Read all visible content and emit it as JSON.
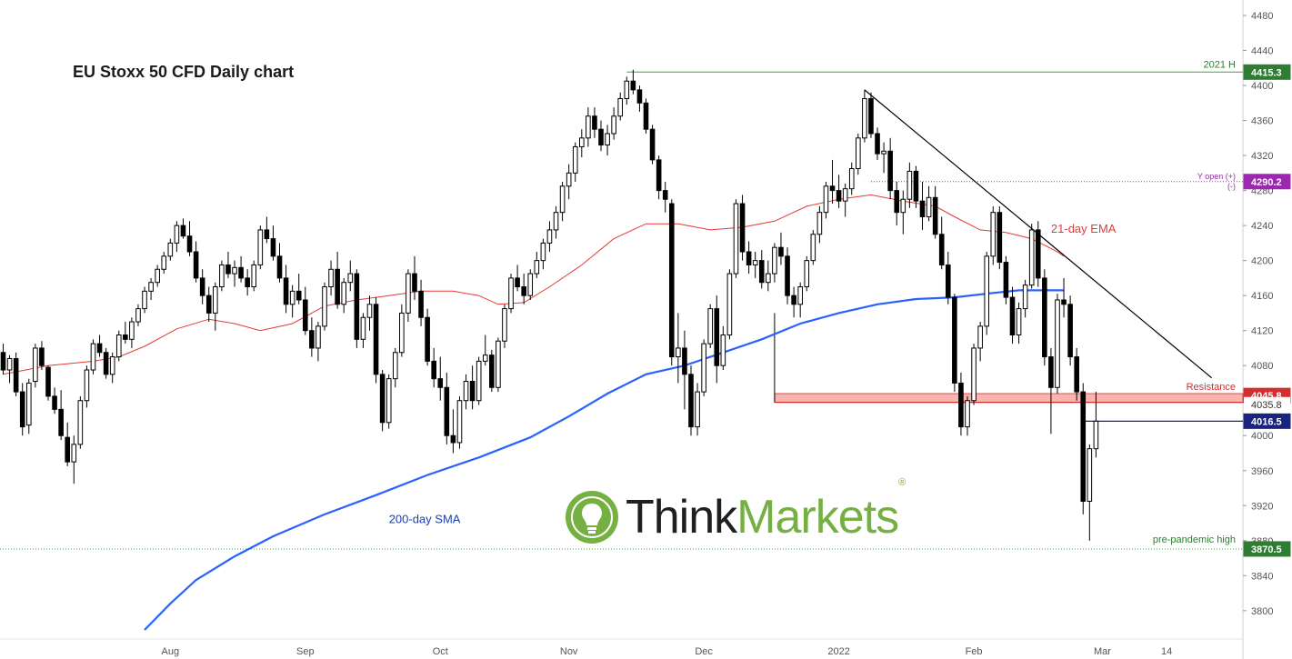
{
  "title": "EU Stoxx 50 CFD Daily chart",
  "colors": {
    "bull": "#ffffff",
    "bear": "#000000",
    "ema": "#e53935",
    "sma": "#2962ff",
    "trendline": "#000000",
    "resistance_zone": "#f8b4ad",
    "resistance_label": "#d32f2f",
    "green": "#2e7d32",
    "purple": "#9c27b0",
    "blue_price": "#1a237e"
  },
  "logo": {
    "think": "Think",
    "markets": "Markets",
    "reg": "®"
  },
  "chart_data": {
    "type": "candlestick",
    "title": "EU Stoxx 50 CFD Daily chart",
    "ylim": [
      3780,
      4480
    ],
    "y_ticks": [
      3800,
      3840,
      3880,
      3920,
      3960,
      4000,
      4040,
      4080,
      4120,
      4160,
      4200,
      4240,
      4280,
      4320,
      4360,
      4400,
      4440,
      4480
    ],
    "x_ticks": [
      {
        "label": "Aug",
        "bar": 26
      },
      {
        "label": "Sep",
        "bar": 47
      },
      {
        "label": "Oct",
        "bar": 68
      },
      {
        "label": "Nov",
        "bar": 88
      },
      {
        "label": "Dec",
        "bar": 109
      },
      {
        "label": "2022",
        "bar": 130
      },
      {
        "label": "Feb",
        "bar": 151
      },
      {
        "label": "Mar",
        "bar": 171
      },
      {
        "label": "14",
        "bar": 181
      }
    ],
    "price_labels": [
      {
        "label": "4415.3",
        "value": 4415.3,
        "color": "#2e7d32",
        "text_color": "#ffffff"
      },
      {
        "label": "4290.2",
        "value": 4290.2,
        "color": "#9c27b0",
        "text_color": "#ffffff"
      },
      {
        "label": "4045.8",
        "value": 4045.8,
        "color": "#d32f2f",
        "text_color": "#ffffff"
      },
      {
        "label": "4035.8",
        "value": 4035.8,
        "color": "#ffffff",
        "text_color": "#333333"
      },
      {
        "label": "4016.5",
        "value": 4016.5,
        "color": "#1a237e",
        "text_color": "#ffffff"
      },
      {
        "label": "3870.5",
        "value": 3870.5,
        "color": "#2e7d32",
        "text_color": "#ffffff"
      }
    ],
    "levels": {
      "high_2021": {
        "label": "2021 H",
        "value": 4415.3,
        "from_bar": 97
      },
      "y_open": {
        "label": "Y open (+)",
        "label2": "(-)",
        "value": 4290.2,
        "from_bar": 135
      },
      "resistance": {
        "label": "Resistance",
        "top": 4048,
        "bottom": 4038,
        "from_bar": 120
      },
      "last_price": {
        "value": 4016.5,
        "from_bar": 168
      },
      "pre_pandemic_high": {
        "label": "pre-pandemic high",
        "value": 3870.5
      }
    },
    "trendline": {
      "from": {
        "bar": 134,
        "value": 4395
      },
      "to": {
        "bar": 188,
        "value": 4066
      }
    },
    "annotations": [
      {
        "label": "21-day EMA",
        "series": "ema",
        "at_bar": 163
      },
      {
        "label": "200-day SMA",
        "series": "sma",
        "at_bar": 60
      }
    ],
    "series": [
      {
        "name": "21-day EMA",
        "key": "ema",
        "points": [
          [
            0,
            4070
          ],
          [
            7,
            4080
          ],
          [
            14,
            4085
          ],
          [
            18,
            4090
          ],
          [
            22,
            4102
          ],
          [
            27,
            4122
          ],
          [
            32,
            4133
          ],
          [
            36,
            4128
          ],
          [
            40,
            4120
          ],
          [
            45,
            4128
          ],
          [
            50,
            4148
          ],
          [
            55,
            4155
          ],
          [
            60,
            4160
          ],
          [
            65,
            4165
          ],
          [
            70,
            4165
          ],
          [
            74,
            4160
          ],
          [
            77,
            4150
          ],
          [
            81,
            4152
          ],
          [
            85,
            4170
          ],
          [
            90,
            4195
          ],
          [
            95,
            4225
          ],
          [
            100,
            4242
          ],
          [
            105,
            4242
          ],
          [
            110,
            4235
          ],
          [
            115,
            4238
          ],
          [
            120,
            4245
          ],
          [
            125,
            4262
          ],
          [
            130,
            4270
          ],
          [
            135,
            4275
          ],
          [
            140,
            4268
          ],
          [
            145,
            4262
          ],
          [
            148,
            4250
          ],
          [
            152,
            4235
          ],
          [
            156,
            4232
          ],
          [
            160,
            4225
          ],
          [
            164,
            4210
          ],
          [
            165,
            4205
          ]
        ]
      },
      {
        "name": "200-day SMA",
        "key": "sma",
        "points": [
          [
            22,
            3778
          ],
          [
            26,
            3808
          ],
          [
            30,
            3835
          ],
          [
            36,
            3862
          ],
          [
            42,
            3885
          ],
          [
            50,
            3910
          ],
          [
            58,
            3932
          ],
          [
            66,
            3955
          ],
          [
            74,
            3975
          ],
          [
            82,
            3998
          ],
          [
            88,
            4022
          ],
          [
            94,
            4048
          ],
          [
            100,
            4070
          ],
          [
            106,
            4080
          ],
          [
            112,
            4095
          ],
          [
            118,
            4110
          ],
          [
            124,
            4128
          ],
          [
            130,
            4140
          ],
          [
            136,
            4150
          ],
          [
            142,
            4156
          ],
          [
            148,
            4158
          ],
          [
            154,
            4163
          ],
          [
            158,
            4166
          ],
          [
            165,
            4166
          ]
        ]
      }
    ],
    "candles": [
      [
        4095,
        4105,
        4070,
        4075
      ],
      [
        4075,
        4092,
        4060,
        4088
      ],
      [
        4088,
        4095,
        4045,
        4050
      ],
      [
        4050,
        4060,
        4000,
        4010
      ],
      [
        4012,
        4065,
        4002,
        4060
      ],
      [
        4062,
        4105,
        4055,
        4100
      ],
      [
        4100,
        4108,
        4075,
        4080
      ],
      [
        4078,
        4080,
        4040,
        4045
      ],
      [
        4045,
        4055,
        4025,
        4030
      ],
      [
        4030,
        4052,
        3995,
        4000
      ],
      [
        3998,
        4015,
        3965,
        3970
      ],
      [
        3970,
        4000,
        3945,
        3990
      ],
      [
        3990,
        4045,
        3985,
        4040
      ],
      [
        4040,
        4080,
        4032,
        4075
      ],
      [
        4075,
        4110,
        4070,
        4105
      ],
      [
        4105,
        4115,
        4090,
        4095
      ],
      [
        4095,
        4100,
        4065,
        4070
      ],
      [
        4070,
        4095,
        4060,
        4090
      ],
      [
        4090,
        4120,
        4085,
        4115
      ],
      [
        4115,
        4130,
        4105,
        4110
      ],
      [
        4110,
        4135,
        4100,
        4130
      ],
      [
        4130,
        4150,
        4125,
        4145
      ],
      [
        4145,
        4170,
        4140,
        4165
      ],
      [
        4165,
        4180,
        4155,
        4175
      ],
      [
        4175,
        4195,
        4170,
        4190
      ],
      [
        4190,
        4210,
        4185,
        4205
      ],
      [
        4205,
        4225,
        4200,
        4220
      ],
      [
        4220,
        4245,
        4210,
        4240
      ],
      [
        4240,
        4248,
        4225,
        4228
      ],
      [
        4228,
        4245,
        4205,
        4210
      ],
      [
        4210,
        4222,
        4175,
        4180
      ],
      [
        4180,
        4190,
        4150,
        4160
      ],
      [
        4160,
        4170,
        4130,
        4140
      ],
      [
        4140,
        4175,
        4120,
        4170
      ],
      [
        4170,
        4200,
        4165,
        4195
      ],
      [
        4195,
        4210,
        4180,
        4185
      ],
      [
        4185,
        4200,
        4170,
        4192
      ],
      [
        4192,
        4205,
        4175,
        4180
      ],
      [
        4180,
        4190,
        4160,
        4170
      ],
      [
        4170,
        4200,
        4165,
        4195
      ],
      [
        4195,
        4240,
        4190,
        4235
      ],
      [
        4235,
        4250,
        4220,
        4225
      ],
      [
        4225,
        4240,
        4200,
        4205
      ],
      [
        4205,
        4220,
        4175,
        4180
      ],
      [
        4180,
        4195,
        4140,
        4150
      ],
      [
        4150,
        4172,
        4135,
        4165
      ],
      [
        4165,
        4185,
        4150,
        4155
      ],
      [
        4155,
        4170,
        4115,
        4120
      ],
      [
        4120,
        4135,
        4090,
        4100
      ],
      [
        4100,
        4130,
        4085,
        4125
      ],
      [
        4125,
        4175,
        4120,
        4170
      ],
      [
        4170,
        4200,
        4160,
        4190
      ],
      [
        4190,
        4210,
        4145,
        4150
      ],
      [
        4150,
        4180,
        4140,
        4175
      ],
      [
        4175,
        4200,
        4165,
        4185
      ],
      [
        4185,
        4190,
        4100,
        4110
      ],
      [
        4110,
        4140,
        4100,
        4135
      ],
      [
        4135,
        4160,
        4120,
        4150
      ],
      [
        4150,
        4158,
        4060,
        4070
      ],
      [
        4070,
        4075,
        4005,
        4015
      ],
      [
        4015,
        4070,
        4008,
        4065
      ],
      [
        4065,
        4100,
        4055,
        4095
      ],
      [
        4095,
        4150,
        4090,
        4140
      ],
      [
        4140,
        4190,
        4130,
        4185
      ],
      [
        4185,
        4205,
        4155,
        4165
      ],
      [
        4165,
        4178,
        4125,
        4135
      ],
      [
        4135,
        4145,
        4080,
        4085
      ],
      [
        4085,
        4100,
        4055,
        4065
      ],
      [
        4065,
        4090,
        4040,
        4055
      ],
      [
        4055,
        4072,
        3990,
        4000
      ],
      [
        4000,
        4030,
        3980,
        3992
      ],
      [
        3992,
        4045,
        3985,
        4040
      ],
      [
        4040,
        4070,
        4030,
        4062
      ],
      [
        4062,
        4080,
        4030,
        4040
      ],
      [
        4040,
        4090,
        4035,
        4085
      ],
      [
        4085,
        4115,
        4080,
        4092
      ],
      [
        4092,
        4098,
        4050,
        4055
      ],
      [
        4055,
        4112,
        4050,
        4108
      ],
      [
        4108,
        4150,
        4100,
        4145
      ],
      [
        4145,
        4185,
        4140,
        4180
      ],
      [
        4180,
        4195,
        4165,
        4170
      ],
      [
        4170,
        4185,
        4150,
        4160
      ],
      [
        4160,
        4190,
        4155,
        4185
      ],
      [
        4185,
        4210,
        4180,
        4200
      ],
      [
        4200,
        4225,
        4190,
        4220
      ],
      [
        4220,
        4245,
        4210,
        4235
      ],
      [
        4235,
        4262,
        4225,
        4255
      ],
      [
        4255,
        4290,
        4245,
        4285
      ],
      [
        4285,
        4310,
        4270,
        4300
      ],
      [
        4300,
        4335,
        4290,
        4330
      ],
      [
        4330,
        4350,
        4318,
        4340
      ],
      [
        4340,
        4375,
        4330,
        4365
      ],
      [
        4365,
        4375,
        4340,
        4350
      ],
      [
        4350,
        4360,
        4325,
        4332
      ],
      [
        4332,
        4355,
        4320,
        4345
      ],
      [
        4345,
        4375,
        4338,
        4365
      ],
      [
        4365,
        4392,
        4360,
        4385
      ],
      [
        4385,
        4410,
        4378,
        4405
      ],
      [
        4405,
        4418,
        4390,
        4395
      ],
      [
        4395,
        4400,
        4370,
        4380
      ],
      [
        4380,
        4385,
        4345,
        4350
      ],
      [
        4350,
        4355,
        4310,
        4315
      ],
      [
        4315,
        4320,
        4270,
        4280
      ],
      [
        4280,
        4290,
        4255,
        4270
      ],
      [
        4265,
        4270,
        4080,
        4090
      ],
      [
        4090,
        4140,
        4060,
        4100
      ],
      [
        4100,
        4120,
        4030,
        4070
      ],
      [
        4070,
        4080,
        4000,
        4010
      ],
      [
        4010,
        4060,
        4000,
        4050
      ],
      [
        4050,
        4110,
        4045,
        4105
      ],
      [
        4105,
        4150,
        4100,
        4145
      ],
      [
        4145,
        4160,
        4060,
        4080
      ],
      [
        4080,
        4125,
        4075,
        4115
      ],
      [
        4115,
        4190,
        4110,
        4185
      ],
      [
        4185,
        4270,
        4180,
        4265
      ],
      [
        4265,
        4275,
        4200,
        4210
      ],
      [
        4210,
        4222,
        4185,
        4195
      ],
      [
        4195,
        4210,
        4180,
        4200
      ],
      [
        4200,
        4212,
        4168,
        4175
      ],
      [
        4175,
        4200,
        4165,
        4185
      ],
      [
        4185,
        4220,
        4175,
        4215
      ],
      [
        4215,
        4232,
        4195,
        4205
      ],
      [
        4205,
        4215,
        4150,
        4160
      ],
      [
        4160,
        4170,
        4135,
        4150
      ],
      [
        4150,
        4175,
        4135,
        4170
      ],
      [
        4170,
        4205,
        4165,
        4200
      ],
      [
        4200,
        4235,
        4195,
        4230
      ],
      [
        4230,
        4262,
        4220,
        4255
      ],
      [
        4255,
        4290,
        4248,
        4285
      ],
      [
        4285,
        4315,
        4265,
        4280
      ],
      [
        4280,
        4298,
        4260,
        4268
      ],
      [
        4268,
        4288,
        4250,
        4282
      ],
      [
        4282,
        4312,
        4275,
        4305
      ],
      [
        4305,
        4345,
        4298,
        4340
      ],
      [
        4340,
        4395,
        4335,
        4385
      ],
      [
        4385,
        4392,
        4340,
        4345
      ],
      [
        4345,
        4352,
        4315,
        4322
      ],
      [
        4322,
        4335,
        4300,
        4325
      ],
      [
        4325,
        4340,
        4270,
        4280
      ],
      [
        4280,
        4290,
        4240,
        4255
      ],
      [
        4255,
        4280,
        4230,
        4270
      ],
      [
        4270,
        4312,
        4260,
        4302
      ],
      [
        4302,
        4308,
        4260,
        4268
      ],
      [
        4268,
        4290,
        4235,
        4250
      ],
      [
        4250,
        4285,
        4245,
        4272
      ],
      [
        4272,
        4285,
        4225,
        4230
      ],
      [
        4230,
        4250,
        4190,
        4195
      ],
      [
        4195,
        4210,
        4150,
        4158
      ],
      [
        4158,
        4162,
        4050,
        4060
      ],
      [
        4060,
        4072,
        4000,
        4010
      ],
      [
        4010,
        4045,
        4000,
        4040
      ],
      [
        4040,
        4105,
        4035,
        4100
      ],
      [
        4100,
        4130,
        4085,
        4125
      ],
      [
        4125,
        4210,
        4115,
        4205
      ],
      [
        4205,
        4262,
        4195,
        4255
      ],
      [
        4255,
        4262,
        4190,
        4198
      ],
      [
        4198,
        4205,
        4150,
        4158
      ],
      [
        4158,
        4170,
        4105,
        4115
      ],
      [
        4115,
        4152,
        4105,
        4145
      ],
      [
        4145,
        4178,
        4135,
        4172
      ],
      [
        4172,
        4242,
        4168,
        4235
      ],
      [
        4235,
        4245,
        4170,
        4180
      ],
      [
        4180,
        4190,
        4080,
        4090
      ],
      [
        4090,
        4100,
        4002,
        4055
      ],
      [
        4055,
        4162,
        4048,
        4155
      ],
      [
        4155,
        4180,
        4135,
        4150
      ],
      [
        4150,
        4160,
        4080,
        4090
      ],
      [
        4090,
        4100,
        4040,
        4050
      ],
      [
        4050,
        4060,
        3910,
        3925
      ],
      [
        3925,
        3990,
        3880,
        3985
      ],
      [
        3985,
        4050,
        3975,
        4016.5
      ]
    ]
  }
}
